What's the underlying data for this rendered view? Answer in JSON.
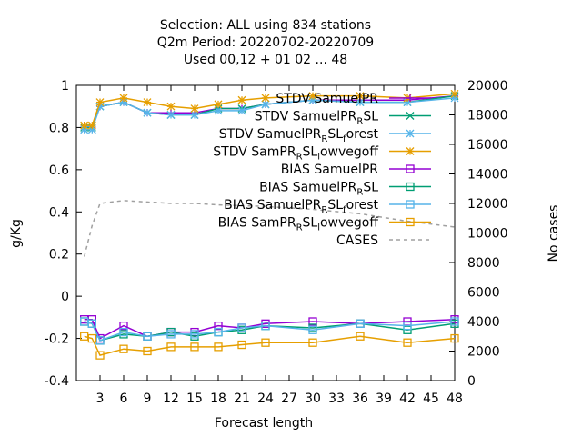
{
  "chart_data": {
    "type": "line",
    "title_lines": [
      "Selection: ALL using   834 stations",
      "Q2m   Period: 20220702-20220709",
      "Used  00,12  + 01 02 ... 48"
    ],
    "xlabel": "Forecast length",
    "ylabel": "g/Kg",
    "y2label": "No cases",
    "ylim": [
      -0.4,
      1.0
    ],
    "y2lim": [
      0,
      20000
    ],
    "xlim": [
      0,
      48
    ],
    "x_ticks": [
      3,
      6,
      9,
      12,
      15,
      18,
      21,
      24,
      27,
      30,
      33,
      36,
      39,
      42,
      45,
      48
    ],
    "y_ticks": [
      "-0.4",
      "-0.2",
      "0",
      "0.2",
      "0.4",
      "0.6",
      "0.8",
      "1"
    ],
    "y2_ticks": [
      "0",
      "2000",
      "4000",
      "6000",
      "8000",
      "10000",
      "12000",
      "14000",
      "16000",
      "18000",
      "20000"
    ],
    "series": [
      {
        "name": "STDV SamuelPR",
        "color": "#9400d3",
        "marker": "plus",
        "x": [
          1,
          2,
          3,
          6,
          9,
          12,
          15,
          18,
          21,
          24,
          30,
          36,
          42,
          48
        ],
        "y": [
          0.81,
          0.8,
          0.9,
          0.92,
          0.87,
          0.87,
          0.87,
          0.89,
          0.89,
          0.91,
          0.93,
          0.93,
          0.93,
          0.95
        ]
      },
      {
        "name": "STDV SamuelPR_RSL",
        "color": "#009e73",
        "marker": "x",
        "x": [
          1,
          2,
          3,
          6,
          9,
          12,
          15,
          18,
          21,
          24,
          30,
          36,
          42,
          48
        ],
        "y": [
          0.8,
          0.8,
          0.9,
          0.92,
          0.87,
          0.86,
          0.86,
          0.89,
          0.89,
          0.91,
          0.93,
          0.92,
          0.92,
          0.95
        ]
      },
      {
        "name": "STDV SamuelPR_RSL_forest",
        "color": "#56b4e9",
        "marker": "star",
        "x": [
          1,
          2,
          3,
          6,
          9,
          12,
          15,
          18,
          21,
          24,
          30,
          36,
          42,
          48
        ],
        "y": [
          0.79,
          0.79,
          0.9,
          0.92,
          0.87,
          0.86,
          0.86,
          0.88,
          0.88,
          0.91,
          0.93,
          0.92,
          0.92,
          0.94
        ]
      },
      {
        "name": "STDV SamPR_RSL_lowvegoff",
        "color": "#e69f00",
        "marker": "star",
        "x": [
          1,
          2,
          3,
          6,
          9,
          12,
          15,
          18,
          21,
          24,
          30,
          36,
          42,
          48
        ],
        "y": [
          0.81,
          0.81,
          0.92,
          0.94,
          0.92,
          0.9,
          0.89,
          0.91,
          0.93,
          0.94,
          0.95,
          0.95,
          0.94,
          0.96
        ]
      },
      {
        "name": "BIAS SamuelPR",
        "color": "#9400d3",
        "marker": "square",
        "x": [
          1,
          2,
          3,
          6,
          9,
          12,
          15,
          18,
          21,
          24,
          30,
          36,
          42,
          48
        ],
        "y": [
          -0.11,
          -0.11,
          -0.2,
          -0.14,
          -0.19,
          -0.17,
          -0.17,
          -0.14,
          -0.15,
          -0.13,
          -0.12,
          -0.13,
          -0.12,
          -0.11
        ]
      },
      {
        "name": "BIAS SamuelPR_RSL",
        "color": "#009e73",
        "marker": "square",
        "x": [
          1,
          2,
          3,
          6,
          9,
          12,
          15,
          18,
          21,
          24,
          30,
          36,
          42,
          48
        ],
        "y": [
          -0.12,
          -0.13,
          -0.21,
          -0.18,
          -0.19,
          -0.17,
          -0.19,
          -0.17,
          -0.16,
          -0.14,
          -0.15,
          -0.13,
          -0.16,
          -0.13
        ]
      },
      {
        "name": "BIAS SamuelPR_RSL_forest",
        "color": "#56b4e9",
        "marker": "square",
        "x": [
          1,
          2,
          3,
          6,
          9,
          12,
          15,
          18,
          21,
          24,
          30,
          36,
          42,
          48
        ],
        "y": [
          -0.12,
          -0.13,
          -0.21,
          -0.17,
          -0.19,
          -0.18,
          -0.18,
          -0.17,
          -0.15,
          -0.14,
          -0.16,
          -0.13,
          -0.14,
          -0.12
        ]
      },
      {
        "name": "BIAS SamPR_RSL_lowvegoff",
        "color": "#e69f00",
        "marker": "square",
        "x": [
          1,
          2,
          3,
          6,
          9,
          12,
          15,
          18,
          21,
          24,
          30,
          36,
          42,
          48
        ],
        "y": [
          -0.19,
          -0.2,
          -0.28,
          -0.25,
          -0.26,
          -0.24,
          -0.24,
          -0.24,
          -0.23,
          -0.22,
          -0.22,
          -0.19,
          -0.22,
          -0.2
        ]
      },
      {
        "name": "CASES",
        "color": "#a0a0a0",
        "marker": "none",
        "axis": "y2",
        "dash": true,
        "x": [
          1,
          2,
          3,
          6,
          9,
          12,
          15,
          18,
          21,
          24,
          30,
          36,
          42,
          48
        ],
        "y": [
          8400,
          10500,
          12000,
          12200,
          12100,
          12000,
          12000,
          11900,
          11850,
          11800,
          11600,
          11300,
          10800,
          10400
        ]
      }
    ]
  }
}
